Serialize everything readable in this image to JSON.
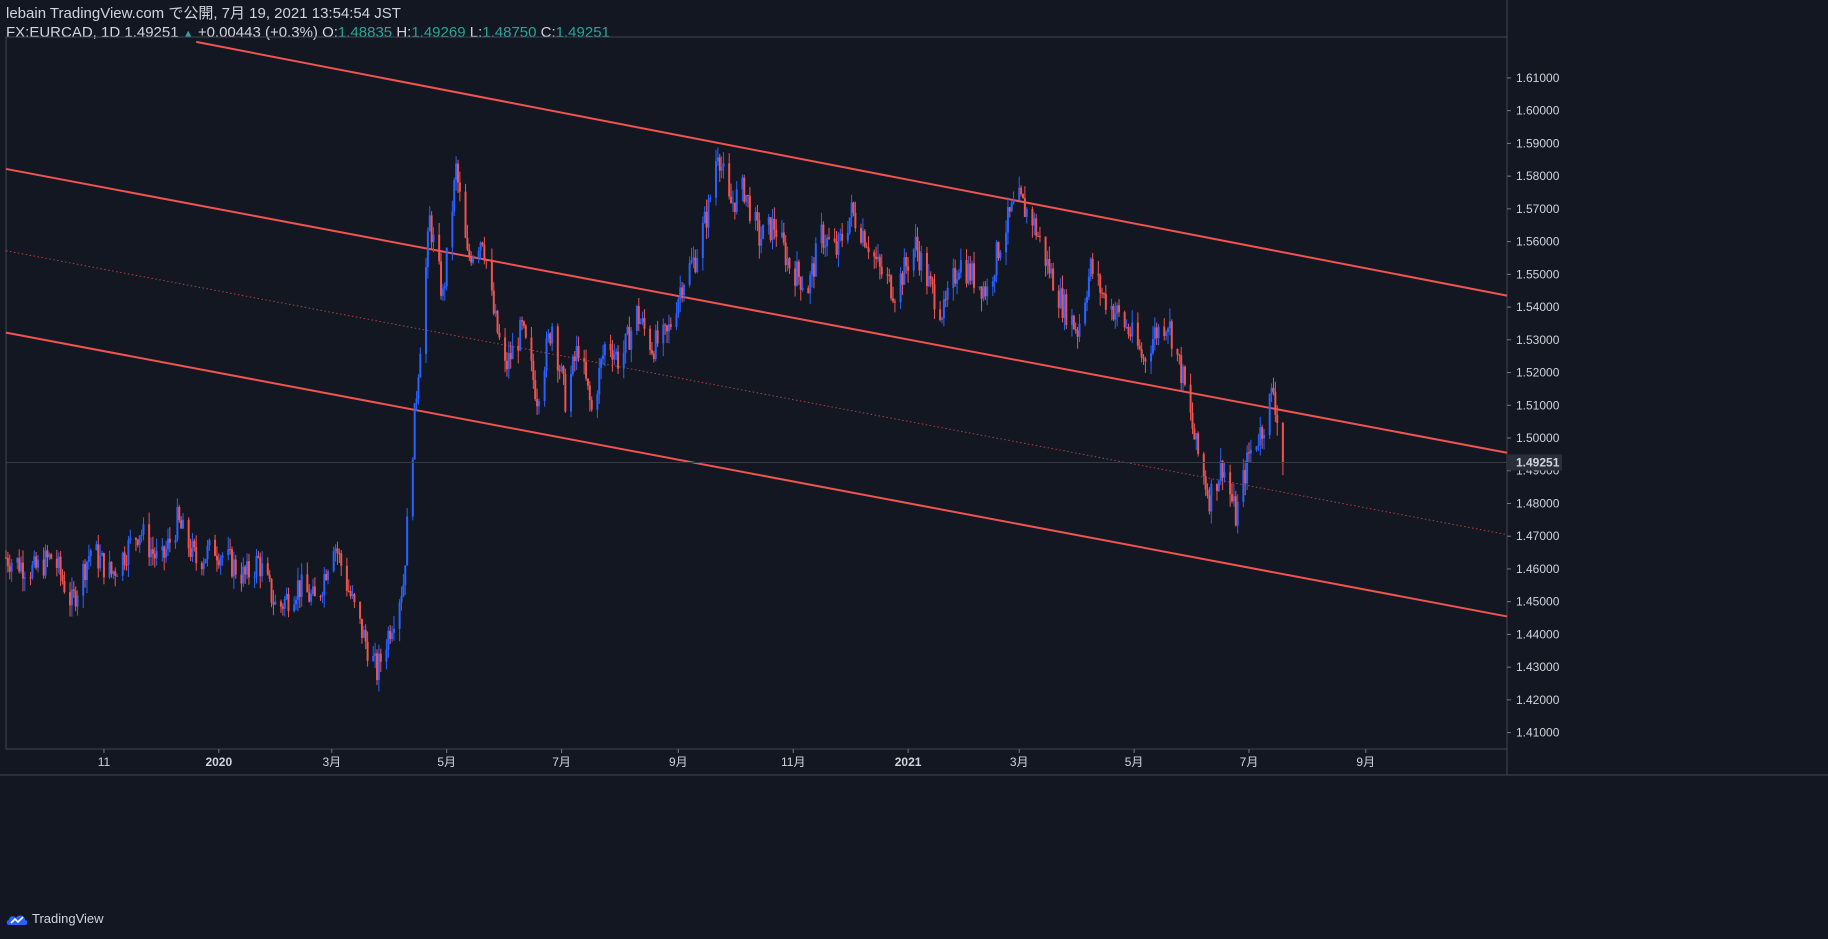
{
  "header": {
    "line1": "lebain TradingView.com で公開, 7月 19, 2021 13:54:54 JST",
    "symbol": "FX:EURCAD, 1D 1.49251",
    "change_icon": "up-triangle-icon",
    "change": "+0.00443 (+0.3%)",
    "o_label": "O:",
    "o_value": "1.48835",
    "h_label": "H:",
    "h_value": "1.49269",
    "l_label": "L:",
    "l_value": "1.48750",
    "c_label": "C:",
    "c_value": "1.49251"
  },
  "footer": {
    "brand": "TradingView",
    "logo_icon": "tradingview-cloud-icon"
  },
  "colors": {
    "background": "#131722",
    "up": "#2962ff",
    "down": "#ef5350",
    "channel": "#f05350",
    "grid": "#2a2e39",
    "price_label_bg": "#2a2e39"
  },
  "chart_data": {
    "type": "candlestick",
    "symbol": "FX:EURCAD",
    "interval": "1D",
    "last_price": "1.49251",
    "ylim": [
      1.405,
      1.6225
    ],
    "y_ticks": [
      "1.61000",
      "1.60000",
      "1.59000",
      "1.58000",
      "1.57000",
      "1.56000",
      "1.55000",
      "1.54000",
      "1.53000",
      "1.52000",
      "1.51000",
      "1.50000",
      "1.49000",
      "1.48000",
      "1.47000",
      "1.46000",
      "1.45000",
      "1.44000",
      "1.43000",
      "1.42000",
      "1.41000"
    ],
    "y_tick_values": [
      1.61,
      1.6,
      1.59,
      1.58,
      1.57,
      1.56,
      1.55,
      1.54,
      1.53,
      1.52,
      1.51,
      1.5,
      1.49,
      1.48,
      1.47,
      1.46,
      1.45,
      1.44,
      1.43,
      1.42,
      1.41
    ],
    "x_ticks": [
      {
        "label": "11",
        "date": "2019-11-01",
        "bold": false
      },
      {
        "label": "2020",
        "date": "2020-01-01",
        "bold": true
      },
      {
        "label": "3月",
        "date": "2020-03-01",
        "bold": false
      },
      {
        "label": "5月",
        "date": "2020-05-01",
        "bold": false
      },
      {
        "label": "7月",
        "date": "2020-07-01",
        "bold": false
      },
      {
        "label": "9月",
        "date": "2020-09-01",
        "bold": false
      },
      {
        "label": "11月",
        "date": "2020-11-01",
        "bold": false
      },
      {
        "label": "2021",
        "date": "2021-01-01",
        "bold": true
      },
      {
        "label": "3月",
        "date": "2021-03-01",
        "bold": false
      },
      {
        "label": "5月",
        "date": "2021-05-01",
        "bold": false
      },
      {
        "label": "7月",
        "date": "2021-07-01",
        "bold": false
      },
      {
        "label": "9月",
        "date": "2021-09-01",
        "bold": false
      }
    ],
    "xlim": [
      "2019-09-10",
      "2021-11-15"
    ],
    "channel_lines": [
      {
        "name": "upper",
        "from": {
          "date": "2019-12-20",
          "price": 1.621
        },
        "to": {
          "date": "2021-11-15",
          "price": 1.5435
        }
      },
      {
        "name": "middle",
        "from": {
          "date": "2019-09-10",
          "price": 1.5822
        },
        "to": {
          "date": "2021-11-15",
          "price": 1.4955
        }
      },
      {
        "name": "lower",
        "from": {
          "date": "2019-09-10",
          "price": 1.5322
        },
        "to": {
          "date": "2021-11-15",
          "price": 1.4455
        }
      },
      {
        "name": "median",
        "style": "dotted",
        "from": {
          "date": "2019-09-10",
          "price": 1.5572
        },
        "to": {
          "date": "2021-11-15",
          "price": 1.4705
        }
      }
    ],
    "closes": [
      {
        "date": "2019-09-10",
        "close": 1.4635
      },
      {
        "date": "2019-09-25",
        "close": 1.4595
      },
      {
        "date": "2019-10-05",
        "close": 1.464
      },
      {
        "date": "2019-10-15",
        "close": 1.4495
      },
      {
        "date": "2019-10-25",
        "close": 1.466
      },
      {
        "date": "2019-11-05",
        "close": 1.4585
      },
      {
        "date": "2019-11-20",
        "close": 1.472
      },
      {
        "date": "2019-12-01",
        "close": 1.461
      },
      {
        "date": "2019-12-10",
        "close": 1.4745
      },
      {
        "date": "2019-12-20",
        "close": 1.4625
      },
      {
        "date": "2019-12-30",
        "close": 1.4665
      },
      {
        "date": "2020-01-15",
        "close": 1.4575
      },
      {
        "date": "2020-01-22",
        "close": 1.4625
      },
      {
        "date": "2020-02-01",
        "close": 1.4475
      },
      {
        "date": "2020-02-12",
        "close": 1.455
      },
      {
        "date": "2020-02-22",
        "close": 1.4495
      },
      {
        "date": "2020-03-02",
        "close": 1.469
      },
      {
        "date": "2020-03-15",
        "close": 1.444
      },
      {
        "date": "2020-03-25",
        "close": 1.4285
      },
      {
        "date": "2020-04-08",
        "close": 1.456
      },
      {
        "date": "2020-04-15",
        "close": 1.5145
      },
      {
        "date": "2020-04-22",
        "close": 1.5665
      },
      {
        "date": "2020-04-29",
        "close": 1.543
      },
      {
        "date": "2020-05-06",
        "close": 1.582
      },
      {
        "date": "2020-05-12",
        "close": 1.555
      },
      {
        "date": "2020-05-20",
        "close": 1.562
      },
      {
        "date": "2020-05-26",
        "close": 1.538
      },
      {
        "date": "2020-06-01",
        "close": 1.521
      },
      {
        "date": "2020-06-10",
        "close": 1.533
      },
      {
        "date": "2020-06-18",
        "close": 1.513
      },
      {
        "date": "2020-06-26",
        "close": 1.535
      },
      {
        "date": "2020-07-03",
        "close": 1.512
      },
      {
        "date": "2020-07-10",
        "close": 1.528
      },
      {
        "date": "2020-07-17",
        "close": 1.508
      },
      {
        "date": "2020-07-25",
        "close": 1.531
      },
      {
        "date": "2020-08-01",
        "close": 1.523
      },
      {
        "date": "2020-08-10",
        "close": 1.538
      },
      {
        "date": "2020-08-18",
        "close": 1.528
      },
      {
        "date": "2020-08-26",
        "close": 1.531
      },
      {
        "date": "2020-09-03",
        "close": 1.548
      },
      {
        "date": "2020-09-10",
        "close": 1.555
      },
      {
        "date": "2020-09-17",
        "close": 1.57
      },
      {
        "date": "2020-09-22",
        "close": 1.589
      },
      {
        "date": "2020-09-28",
        "close": 1.571
      },
      {
        "date": "2020-10-06",
        "close": 1.576
      },
      {
        "date": "2020-10-14",
        "close": 1.561
      },
      {
        "date": "2020-10-22",
        "close": 1.565
      },
      {
        "date": "2020-10-30",
        "close": 1.553
      },
      {
        "date": "2020-11-09",
        "close": 1.546
      },
      {
        "date": "2020-11-16",
        "close": 1.562
      },
      {
        "date": "2020-11-24",
        "close": 1.557
      },
      {
        "date": "2020-12-02",
        "close": 1.569
      },
      {
        "date": "2020-12-10",
        "close": 1.561
      },
      {
        "date": "2020-12-17",
        "close": 1.551
      },
      {
        "date": "2020-12-25",
        "close": 1.545
      },
      {
        "date": "2021-01-05",
        "close": 1.559
      },
      {
        "date": "2021-01-12",
        "close": 1.547
      },
      {
        "date": "2021-01-20",
        "close": 1.538
      },
      {
        "date": "2021-01-28",
        "close": 1.554
      },
      {
        "date": "2021-02-05",
        "close": 1.549
      },
      {
        "date": "2021-02-12",
        "close": 1.545
      },
      {
        "date": "2021-02-20",
        "close": 1.562
      },
      {
        "date": "2021-02-28",
        "close": 1.573
      },
      {
        "date": "2021-03-08",
        "close": 1.567
      },
      {
        "date": "2021-03-16",
        "close": 1.553
      },
      {
        "date": "2021-03-24",
        "close": 1.541
      },
      {
        "date": "2021-04-01",
        "close": 1.533
      },
      {
        "date": "2021-04-08",
        "close": 1.552
      },
      {
        "date": "2021-04-15",
        "close": 1.543
      },
      {
        "date": "2021-04-22",
        "close": 1.538
      },
      {
        "date": "2021-04-29",
        "close": 1.532
      },
      {
        "date": "2021-05-06",
        "close": 1.524
      },
      {
        "date": "2021-05-12",
        "close": 1.532
      },
      {
        "date": "2021-05-19",
        "close": 1.536
      },
      {
        "date": "2021-05-27",
        "close": 1.518
      },
      {
        "date": "2021-06-03",
        "close": 1.497
      },
      {
        "date": "2021-06-10",
        "close": 1.482
      },
      {
        "date": "2021-06-17",
        "close": 1.492
      },
      {
        "date": "2021-06-24",
        "close": 1.476
      },
      {
        "date": "2021-07-01",
        "close": 1.495
      },
      {
        "date": "2021-07-08",
        "close": 1.503
      },
      {
        "date": "2021-07-14",
        "close": 1.515
      },
      {
        "date": "2021-07-19",
        "close": 1.4925
      }
    ]
  }
}
